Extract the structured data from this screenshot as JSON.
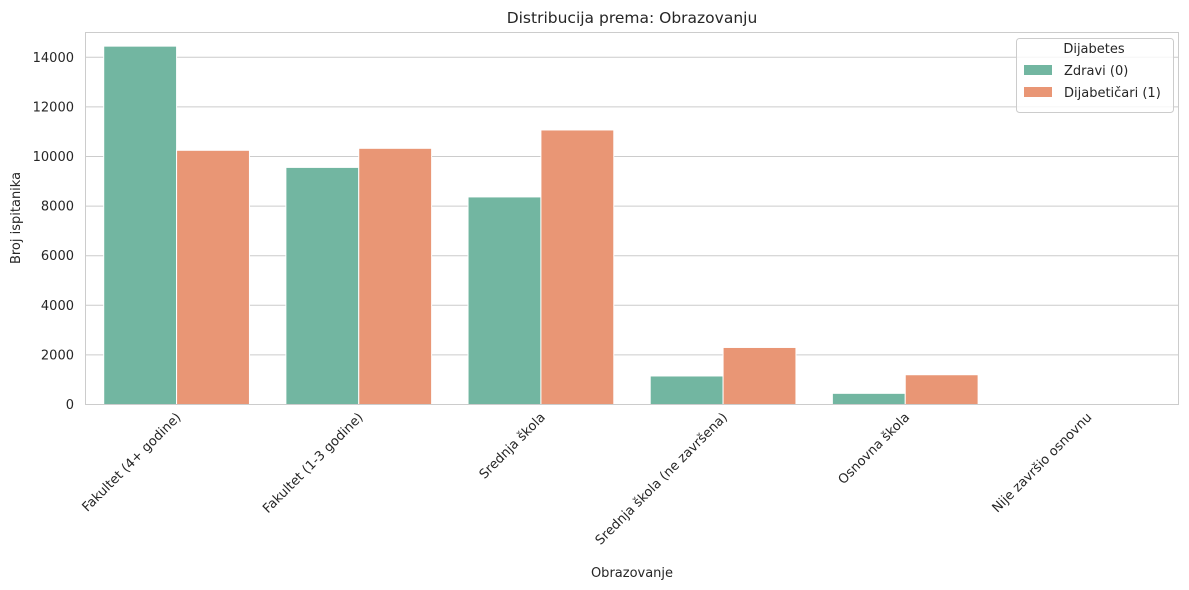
{
  "chart_data": {
    "type": "bar",
    "title": "Distribucija prema: Obrazovanju",
    "xlabel": "Obrazovanje",
    "ylabel": "Broj ispitanika",
    "categories": [
      "Fakultet (4+ godine)",
      "Fakultet (1-3 godine)",
      "Srednja škola",
      "Srednja škola (ne završena)",
      "Osnovna škola",
      "Nije završio osnovnu"
    ],
    "series": [
      {
        "name": "Zdravi (0)",
        "color": "#72b6a1",
        "values": [
          14450,
          9560,
          8370,
          1150,
          450,
          5
        ]
      },
      {
        "name": "Dijabetičari (1)",
        "color": "#e99675",
        "values": [
          10250,
          10330,
          11070,
          2300,
          1200,
          20
        ]
      }
    ],
    "ylim": [
      0,
      15000
    ],
    "yticks": [
      0,
      2000,
      4000,
      6000,
      8000,
      10000,
      12000,
      14000
    ],
    "grid": "y",
    "legend": {
      "title": "Dijabetes",
      "placement": "top-right"
    }
  }
}
